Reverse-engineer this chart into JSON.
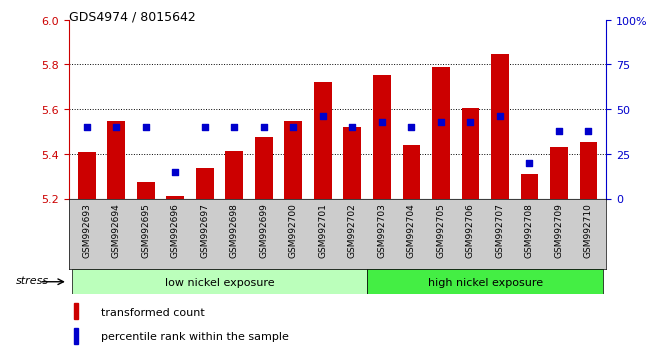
{
  "title": "GDS4974 / 8015642",
  "categories": [
    "GSM992693",
    "GSM992694",
    "GSM992695",
    "GSM992696",
    "GSM992697",
    "GSM992698",
    "GSM992699",
    "GSM992700",
    "GSM992701",
    "GSM992702",
    "GSM992703",
    "GSM992704",
    "GSM992705",
    "GSM992706",
    "GSM992707",
    "GSM992708",
    "GSM992709",
    "GSM992710"
  ],
  "bar_values": [
    5.41,
    5.545,
    5.275,
    5.21,
    5.335,
    5.415,
    5.475,
    5.545,
    5.72,
    5.52,
    5.755,
    5.44,
    5.79,
    5.605,
    5.845,
    5.31,
    5.43,
    5.455
  ],
  "percentile_values": [
    40,
    40,
    40,
    15,
    40,
    40,
    40,
    40,
    46,
    40,
    43,
    40,
    43,
    43,
    46,
    20,
    38,
    38
  ],
  "bar_color": "#cc0000",
  "dot_color": "#0000cc",
  "y_min": 5.2,
  "y_max": 6.0,
  "y_ticks": [
    5.2,
    5.4,
    5.6,
    5.8,
    6.0
  ],
  "y2_ticks": [
    0,
    25,
    50,
    75,
    100
  ],
  "grid_values": [
    5.4,
    5.6,
    5.8
  ],
  "group1_label": "low nickel exposure",
  "group2_label": "high nickel exposure",
  "group1_indices": [
    0,
    9
  ],
  "group2_indices": [
    10,
    17
  ],
  "stress_label": "stress",
  "legend1": "transformed count",
  "legend2": "percentile rank within the sample",
  "bar_width": 0.6,
  "group_color1": "#bbffbb",
  "group_color2": "#44ee44",
  "tick_area_color": "#cccccc",
  "bg_color": "#ffffff"
}
